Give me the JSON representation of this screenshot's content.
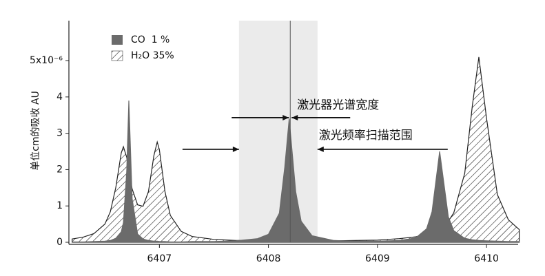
{
  "chart_data": {
    "type": "area",
    "y_label": "单位cm的吸收 AU",
    "x": [
      6406.2,
      6406.3,
      6406.4,
      6406.5,
      6406.55,
      6406.6,
      6406.65,
      6406.67,
      6406.7,
      6406.72,
      6406.75,
      6406.8,
      6406.85,
      6406.9,
      6406.95,
      6406.98,
      6407.0,
      6407.05,
      6407.1,
      6407.2,
      6407.3,
      6407.5,
      6407.7,
      6407.9,
      6408.0,
      6408.1,
      6408.15,
      6408.19,
      6408.25,
      6408.3,
      6408.4,
      6408.6,
      6408.8,
      6409.0,
      6409.2,
      6409.35,
      6409.45,
      6409.5,
      6409.57,
      6409.65,
      6409.7,
      6409.8,
      6409.87,
      6409.93,
      6410.0,
      6410.1,
      6410.2,
      6410.3
    ],
    "series": [
      {
        "name": "H₂O 35%",
        "color": "#222222",
        "pattern": "hatch",
        "values": [
          0.09,
          0.14,
          0.24,
          0.5,
          0.84,
          1.5,
          2.46,
          2.63,
          2.34,
          1.98,
          1.47,
          1.03,
          0.99,
          1.4,
          2.39,
          2.76,
          2.55,
          1.41,
          0.74,
          0.3,
          0.16,
          0.08,
          0.05,
          0.05,
          0.05,
          0.04,
          0.04,
          0.04,
          0.04,
          0.04,
          0.04,
          0.04,
          0.05,
          0.06,
          0.1,
          0.15,
          0.21,
          0.26,
          0.36,
          0.58,
          0.81,
          1.9,
          3.75,
          5.1,
          3.42,
          1.31,
          0.62,
          0.35
        ]
      },
      {
        "name": "CO  1 %",
        "color": "#6b6b6b",
        "pattern": "solid",
        "values": [
          0.01,
          0.01,
          0.02,
          0.03,
          0.05,
          0.11,
          0.29,
          0.54,
          1.95,
          3.9,
          1.2,
          0.23,
          0.09,
          0.05,
          0.03,
          0.03,
          0.02,
          0.02,
          0.01,
          0.01,
          0.02,
          0.02,
          0.04,
          0.1,
          0.22,
          0.8,
          2.07,
          3.4,
          1.39,
          0.58,
          0.18,
          0.05,
          0.03,
          0.03,
          0.05,
          0.12,
          0.37,
          0.84,
          2.5,
          0.7,
          0.32,
          0.11,
          0.07,
          0.05,
          0.04,
          0.03,
          0.02,
          0.02
        ]
      }
    ],
    "xlim": [
      6406.17,
      6410.29
    ],
    "xticks": [
      6407,
      6408,
      6409,
      6410
    ],
    "ylim": [
      0,
      6.1
    ],
    "yticks": [
      0,
      1,
      2,
      3,
      4,
      {
        "value": 5,
        "label": "5x10⁻⁶"
      }
    ],
    "legend": "top-left",
    "annotations": [
      {
        "text": "激光器光谱宽度",
        "x": 6408.2,
        "y": 3.43
      },
      {
        "text": "激光频率扫描范围",
        "span": [
          6407.73,
          6408.45
        ],
        "y": 2.56
      }
    ]
  }
}
